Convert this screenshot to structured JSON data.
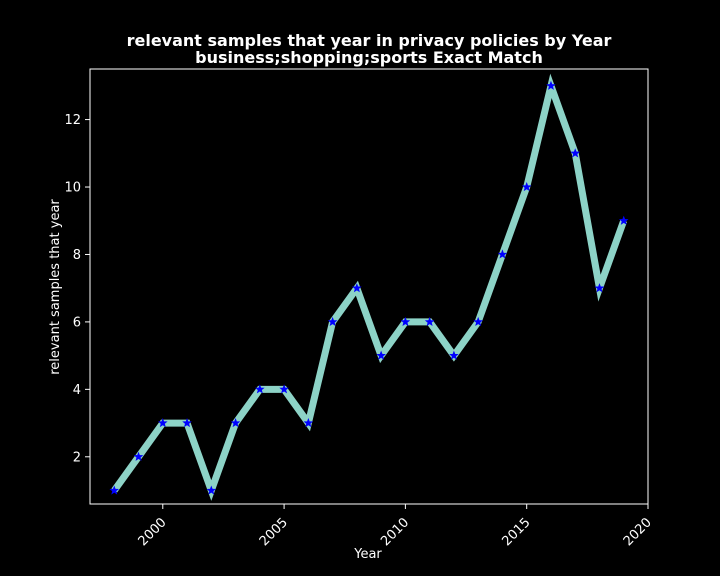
{
  "chart_data": {
    "type": "line",
    "title": "relevant samples that year in privacy policies by Year",
    "subtitle": "business;shopping;sports Exact Match",
    "xlabel": "Year",
    "ylabel": "relevant samples that year",
    "x": [
      1998,
      1999,
      2000,
      2001,
      2002,
      2003,
      2004,
      2005,
      2006,
      2007,
      2008,
      2009,
      2010,
      2011,
      2012,
      2013,
      2014,
      2015,
      2016,
      2017,
      2018,
      2019
    ],
    "series": [
      {
        "values": [
          1,
          2,
          3,
          3,
          1,
          3,
          4,
          4,
          3,
          6,
          7,
          5,
          6,
          6,
          5,
          6,
          8,
          10,
          13,
          11,
          7,
          9
        ],
        "line_color": "#8dd3c7",
        "marker_color": "#0000ff",
        "marker": "star"
      }
    ],
    "xlim": [
      1997,
      2020
    ],
    "ylim": [
      0.6,
      13.5
    ],
    "xticks": [
      2000,
      2005,
      2010,
      2015,
      2020
    ],
    "yticks": [
      2,
      4,
      6,
      8,
      10,
      12
    ],
    "xtick_labels": [
      "2000",
      "2005",
      "2010",
      "2015",
      "2020"
    ],
    "ytick_labels": [
      "2",
      "4",
      "6",
      "8",
      "10",
      "12"
    ],
    "xtick_rotation": 45,
    "grid": false,
    "background": "#000000",
    "foreground": "#ffffff"
  }
}
